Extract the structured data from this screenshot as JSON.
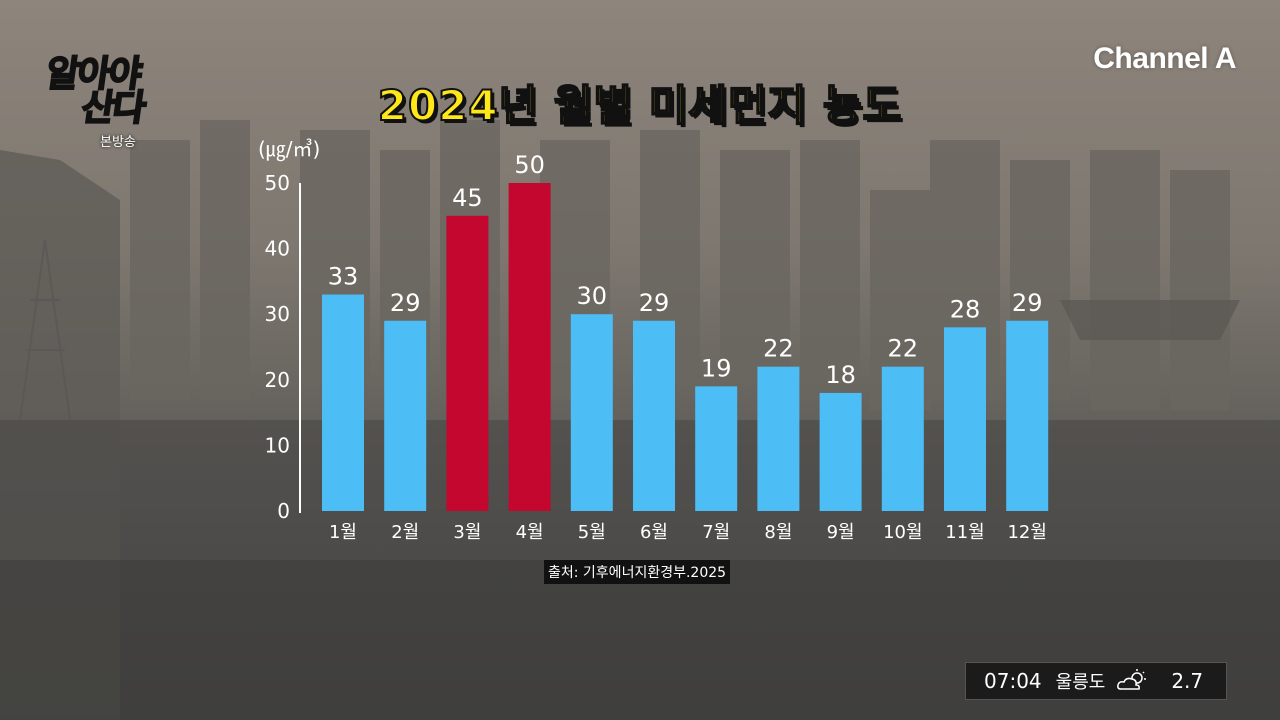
{
  "header": {
    "show_logo": "알아야 산다",
    "broadcast_label": "본방송",
    "channel": "Channel A",
    "title": "2024년 월별 미세먼지 농도"
  },
  "chart_data": {
    "type": "bar",
    "title": "2024년 월별 미세먼지 농도",
    "ylabel": "(㎍/㎥)",
    "xlabel": "",
    "categories": [
      "1월",
      "2월",
      "3월",
      "4월",
      "5월",
      "6월",
      "7월",
      "8월",
      "9월",
      "10월",
      "11월",
      "12월"
    ],
    "values": [
      33,
      29,
      45,
      50,
      30,
      29,
      19,
      22,
      18,
      22,
      28,
      29
    ],
    "highlighted": [
      "3월",
      "4월"
    ],
    "ylim": [
      0,
      50
    ],
    "yticks": [
      0,
      10,
      20,
      30,
      40,
      50
    ],
    "colors": {
      "normal": "#4dbdf5",
      "highlight": "#c3072f",
      "text": "#ffffff"
    },
    "grid": false
  },
  "source": "출처: 기후에너지환경부.2025",
  "ticker": {
    "time": "07:04",
    "location": "울릉도",
    "weather_icon": "partly-cloudy-icon",
    "value": "2.7"
  }
}
